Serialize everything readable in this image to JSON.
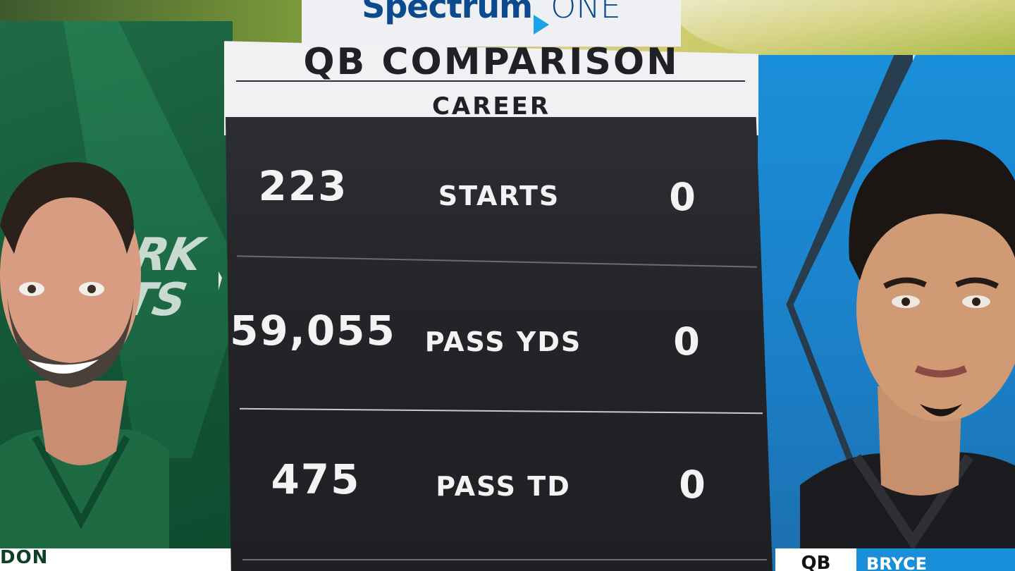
{
  "brand": {
    "name": "Spectrum",
    "suffix": "ONE"
  },
  "title": "QB COMPARISON",
  "subtitle": "CAREER",
  "stats": [
    {
      "left": "223",
      "label": "STARTS",
      "right": "0"
    },
    {
      "left": "59,055",
      "label": "PASS YDS",
      "right": "0"
    },
    {
      "left": "475",
      "label": "PASS TD",
      "right": "0"
    }
  ],
  "left_player": {
    "name_fragment": "DON"
  },
  "right_player": {
    "position": "QB",
    "first_name": "BRYCE"
  },
  "colors": {
    "jets_green": "#145638",
    "panthers_blue": "#1a8fd9",
    "panel_dark": "#232428",
    "title_bg": "#f1f1f3"
  }
}
